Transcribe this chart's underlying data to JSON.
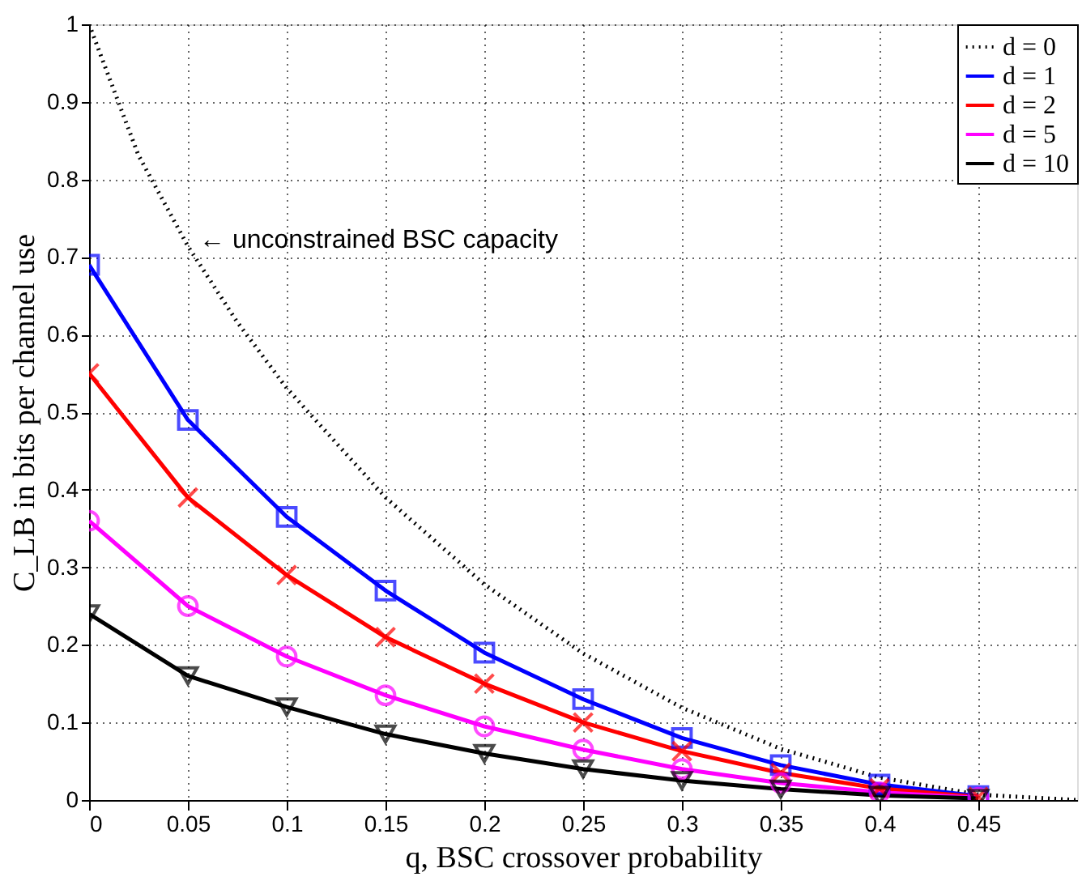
{
  "chart_data": {
    "type": "line",
    "xlabel": "q, BSC crossover probability",
    "ylabel": "C_LB in bits per channel use",
    "xlim": [
      0,
      0.5
    ],
    "ylim": [
      0,
      1
    ],
    "xticks": [
      0,
      0.05,
      0.1,
      0.15,
      0.2,
      0.25,
      0.3,
      0.35,
      0.4,
      0.45
    ],
    "yticks": [
      0,
      0.1,
      0.2,
      0.3,
      0.4,
      0.5,
      0.6,
      0.7,
      0.8,
      0.9,
      1
    ],
    "grid": true,
    "legend": "top right",
    "series": [
      {
        "name": "d = 0",
        "color": "#000000",
        "line_style": "dotted",
        "marker": "none",
        "x": [
          0,
          0.025,
          0.05,
          0.075,
          0.1,
          0.15,
          0.2,
          0.25,
          0.3,
          0.35,
          0.4,
          0.45,
          0.5
        ],
        "values": [
          1,
          0.831,
          0.714,
          0.616,
          0.531,
          0.39,
          0.278,
          0.189,
          0.119,
          0.066,
          0.029,
          0.007,
          0
        ]
      },
      {
        "name": "d = 1",
        "color": "#0000ff",
        "line_style": "solid",
        "marker": "square",
        "x": [
          0,
          0.05,
          0.1,
          0.15,
          0.2,
          0.25,
          0.3,
          0.35,
          0.4,
          0.45
        ],
        "values": [
          0.69,
          0.49,
          0.365,
          0.27,
          0.19,
          0.13,
          0.08,
          0.045,
          0.02,
          0.005
        ]
      },
      {
        "name": "d = 2",
        "color": "#ff0000",
        "line_style": "solid",
        "marker": "cross",
        "x": [
          0,
          0.05,
          0.1,
          0.15,
          0.2,
          0.25,
          0.3,
          0.35,
          0.4,
          0.45
        ],
        "values": [
          0.55,
          0.39,
          0.29,
          0.21,
          0.15,
          0.1,
          0.063,
          0.035,
          0.015,
          0.004
        ]
      },
      {
        "name": "d = 5",
        "color": "#ff00ff",
        "line_style": "solid",
        "marker": "circle",
        "x": [
          0,
          0.05,
          0.1,
          0.15,
          0.2,
          0.25,
          0.3,
          0.35,
          0.4,
          0.45
        ],
        "values": [
          0.36,
          0.25,
          0.185,
          0.135,
          0.095,
          0.065,
          0.04,
          0.022,
          0.01,
          0.003
        ]
      },
      {
        "name": "d = 10",
        "color": "#000000",
        "line_style": "solid",
        "marker": "triangle",
        "x": [
          0,
          0.05,
          0.1,
          0.15,
          0.2,
          0.25,
          0.3,
          0.35,
          0.4,
          0.45
        ],
        "values": [
          0.24,
          0.16,
          0.12,
          0.085,
          0.06,
          0.04,
          0.025,
          0.014,
          0.006,
          0.002
        ]
      }
    ],
    "annotations": [
      "← unconstrained BSC capacity"
    ]
  }
}
